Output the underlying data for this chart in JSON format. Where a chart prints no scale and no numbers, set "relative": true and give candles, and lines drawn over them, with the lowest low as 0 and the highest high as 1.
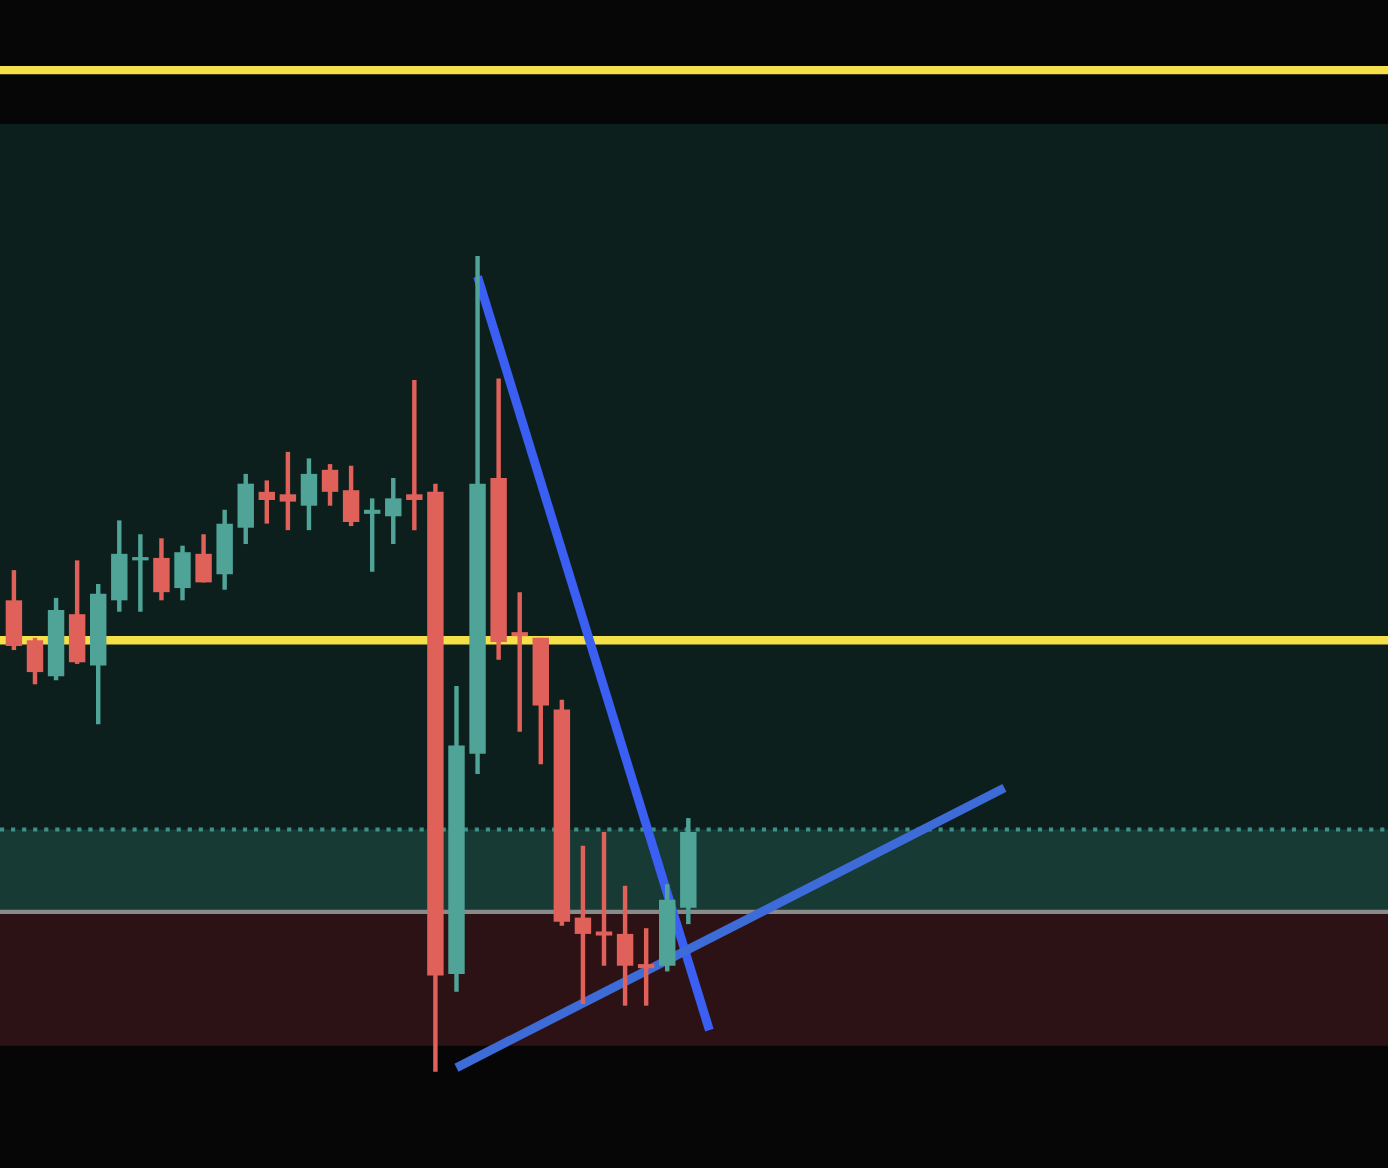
{
  "chart_data": {
    "type": "candlestick",
    "relative": true,
    "grid": false,
    "legend": false,
    "categories": [
      null,
      null,
      null,
      null,
      null,
      null,
      null,
      null,
      null,
      null,
      null,
      null,
      null,
      null,
      null,
      null,
      null,
      null,
      null,
      null,
      null,
      null,
      null,
      null,
      null,
      null,
      null,
      null,
      null,
      null,
      null,
      null,
      null,
      null,
      null,
      null,
      null,
      null,
      null,
      null,
      null,
      null,
      null,
      null,
      null,
      null,
      null,
      null,
      null,
      null,
      null,
      null,
      null,
      null,
      null,
      null,
      null,
      null,
      null,
      null,
      null,
      null,
      null
    ],
    "ohlc": [
      [
        0.578,
        0.615,
        0.517,
        0.522
      ],
      [
        0.529,
        0.532,
        0.475,
        0.49
      ],
      [
        0.485,
        0.581,
        0.48,
        0.566
      ],
      [
        0.561,
        0.627,
        0.5,
        0.502
      ],
      [
        0.498,
        0.598,
        0.426,
        0.586
      ],
      [
        0.578,
        0.676,
        0.564,
        0.635
      ],
      [
        0.627,
        0.659,
        0.564,
        0.63
      ],
      [
        0.63,
        0.654,
        0.578,
        0.588
      ],
      [
        0.593,
        0.645,
        0.578,
        0.637
      ],
      [
        0.635,
        0.659,
        0.6,
        0.6
      ],
      [
        0.61,
        0.689,
        0.591,
        0.672
      ],
      [
        0.667,
        0.733,
        0.647,
        0.721
      ],
      [
        0.711,
        0.725,
        0.672,
        0.701
      ],
      [
        0.708,
        0.76,
        0.664,
        0.699
      ],
      [
        0.694,
        0.752,
        0.664,
        0.733
      ],
      [
        0.738,
        0.745,
        0.694,
        0.711
      ],
      [
        0.713,
        0.743,
        0.669,
        0.674
      ],
      [
        0.684,
        0.703,
        0.613,
        0.689
      ],
      [
        0.681,
        0.728,
        0.647,
        0.703
      ],
      [
        0.708,
        0.848,
        0.664,
        0.701
      ],
      [
        0.711,
        0.721,
        0,
        0.118
      ],
      [
        0.12,
        0.473,
        0.098,
        0.4
      ],
      [
        0.39,
        1,
        0.365,
        0.721
      ],
      [
        0.728,
        0.85,
        0.505,
        0.527
      ],
      [
        0.539,
        0.588,
        0.417,
        0.534
      ],
      [
        0.532,
        0.532,
        0.377,
        0.449
      ],
      [
        0.444,
        0.456,
        0.179,
        0.184
      ],
      [
        0.189,
        0.277,
        0.083,
        0.169
      ],
      [
        0.172,
        0.294,
        0.13,
        0.167
      ],
      [
        0.169,
        0.228,
        0.081,
        0.13
      ],
      [
        0.132,
        0.176,
        0.081,
        0.127
      ],
      [
        0.13,
        0.23,
        0.123,
        0.211
      ],
      [
        0.201,
        0.311,
        0.181,
        0.294
      ],
      null,
      null,
      null,
      null,
      null,
      null,
      null,
      null,
      null,
      null,
      null,
      null,
      null,
      null,
      null,
      null,
      null,
      null,
      null,
      null,
      null,
      null,
      null,
      null,
      null,
      null,
      null,
      null,
      null,
      null
    ],
    "colors": [
      "#e0605a",
      "#e0605a",
      "#4fa397",
      "#e0605a",
      "#4fa397",
      "#4fa397",
      "#4fa397",
      "#e0605a",
      "#4fa397",
      "#e0605a",
      "#4fa397",
      "#4fa397",
      "#e0605a",
      "#e0605a",
      "#4fa397",
      "#e0605a",
      "#e0605a",
      "#4fa397",
      "#4fa397",
      "#e0605a",
      "#e0605a",
      "#4fa397",
      "#4fa397",
      "#e0605a",
      "#e0605a",
      "#e0605a",
      "#e0605a",
      "#e0605a",
      "#e0605a",
      "#e0605a",
      "#e0605a",
      "#4fa397",
      "#4fa397",
      null,
      null,
      null,
      null,
      null,
      null,
      null,
      null,
      null,
      null,
      null,
      null,
      null,
      null,
      null,
      null,
      null,
      null,
      null,
      null,
      null,
      null,
      null,
      null,
      null,
      null,
      null,
      null,
      null,
      null
    ],
    "series": [
      {
        "type": "line",
        "color": "#3a5ff2",
        "values": [
          null,
          null,
          null,
          null,
          null,
          null,
          null,
          null,
          null,
          null,
          null,
          null,
          null,
          null,
          null,
          null,
          null,
          null,
          null,
          null,
          null,
          null,
          0.975,
          null,
          null,
          null,
          null,
          null,
          null,
          null,
          null,
          null,
          null,
          0.051,
          null,
          null,
          null,
          null,
          null,
          null,
          null,
          null,
          null,
          null,
          null,
          null,
          null,
          null,
          null,
          null,
          null,
          null,
          null,
          null,
          null,
          null,
          null,
          null,
          null,
          null,
          null,
          null,
          null
        ]
      },
      {
        "type": "line",
        "color": "#3d6cd9",
        "values": [
          null,
          null,
          null,
          null,
          null,
          null,
          null,
          null,
          null,
          null,
          null,
          null,
          null,
          null,
          null,
          null,
          null,
          null,
          null,
          null,
          null,
          0.005,
          null,
          null,
          null,
          null,
          null,
          null,
          null,
          null,
          null,
          null,
          null,
          null,
          null,
          null,
          null,
          null,
          null,
          null,
          null,
          null,
          null,
          null,
          null,
          null,
          null,
          0.348,
          null,
          null,
          null,
          null,
          null,
          null,
          null,
          null,
          null,
          null,
          null,
          null,
          null,
          null,
          null
        ]
      }
    ],
    "bands": [
      {
        "axis": "y",
        "from": 0.196,
        "to": 1.162,
        "color": "#0c1f1c"
      },
      {
        "axis": "y",
        "from": 0.196,
        "to": 0.297,
        "color": "#173a35"
      },
      {
        "axis": "y",
        "from": 0.032,
        "to": 0.196,
        "color": "#2c1214"
      }
    ],
    "ref_lines": [
      {
        "axis": "y",
        "value": 1.228,
        "color": "#f5e04a",
        "line_style": "solid"
      },
      {
        "axis": "y",
        "value": 0.529,
        "color": "#f5e04a",
        "line_style": "solid"
      },
      {
        "axis": "y",
        "value": 0.297,
        "color": "#3e8f87",
        "line_style": "dotted"
      },
      {
        "axis": "y",
        "value": 0.196,
        "color": "#8a8a8a",
        "line_style": "solid"
      }
    ]
  }
}
